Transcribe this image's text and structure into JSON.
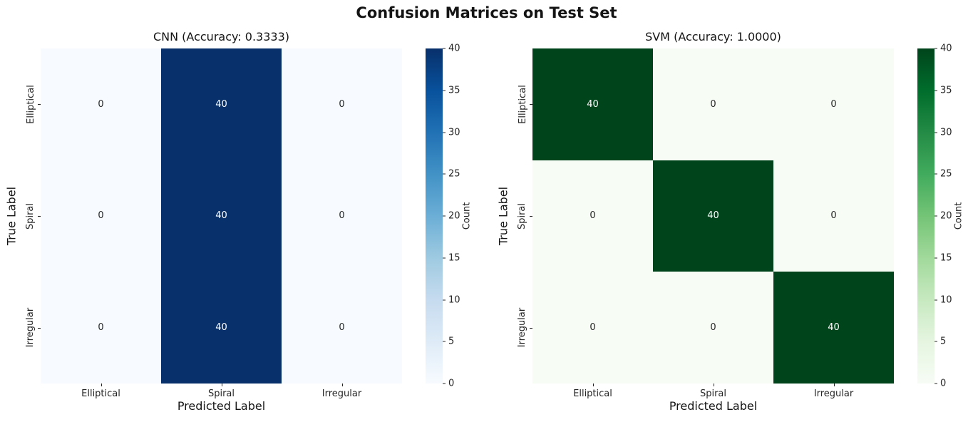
{
  "figure": {
    "title": "Confusion Matrices on Test Set",
    "background": "#ffffff"
  },
  "chart_data": [
    {
      "type": "heatmap",
      "title": "CNN (Accuracy: 0.3333)",
      "xlabel": "Predicted Label",
      "ylabel": "True Label",
      "x_ticklabels": [
        "Elliptical",
        "Spiral",
        "Irregular"
      ],
      "y_ticklabels": [
        "Elliptical",
        "Spiral",
        "Irregular"
      ],
      "matrix": [
        [
          0,
          40,
          0
        ],
        [
          0,
          40,
          0
        ],
        [
          0,
          40,
          0
        ]
      ],
      "vmin": 0,
      "vmax": 40,
      "colormap": "Blues",
      "cmap_stops": [
        "#f7fbff",
        "#deebf7",
        "#c6dbef",
        "#9ecae1",
        "#6baed6",
        "#4292c6",
        "#2171b5",
        "#08519c",
        "#08306b"
      ],
      "color_low": "#f7fbff",
      "color_high": "#08306b",
      "annot_color_low": "#262626",
      "annot_color_high": "#ffffff",
      "colorbar_label": "Count",
      "colorbar_ticks": [
        0,
        5,
        10,
        15,
        20,
        25,
        30,
        35,
        40
      ],
      "grid": false,
      "legend": "colorbar-right"
    },
    {
      "type": "heatmap",
      "title": "SVM (Accuracy: 1.0000)",
      "xlabel": "Predicted Label",
      "ylabel": "True Label",
      "x_ticklabels": [
        "Elliptical",
        "Spiral",
        "Irregular"
      ],
      "y_ticklabels": [
        "Elliptical",
        "Spiral",
        "Irregular"
      ],
      "matrix": [
        [
          40,
          0,
          0
        ],
        [
          0,
          40,
          0
        ],
        [
          0,
          0,
          40
        ]
      ],
      "vmin": 0,
      "vmax": 40,
      "colormap": "Greens",
      "cmap_stops": [
        "#f7fcf5",
        "#e5f5e0",
        "#c7e9c0",
        "#a1d99b",
        "#74c476",
        "#41ab5d",
        "#238b45",
        "#006d2c",
        "#00441b"
      ],
      "color_low": "#f7fcf5",
      "color_high": "#00441b",
      "annot_color_low": "#262626",
      "annot_color_high": "#ffffff",
      "colorbar_label": "Count",
      "colorbar_ticks": [
        0,
        5,
        10,
        15,
        20,
        25,
        30,
        35,
        40
      ],
      "grid": false,
      "legend": "colorbar-right"
    }
  ]
}
